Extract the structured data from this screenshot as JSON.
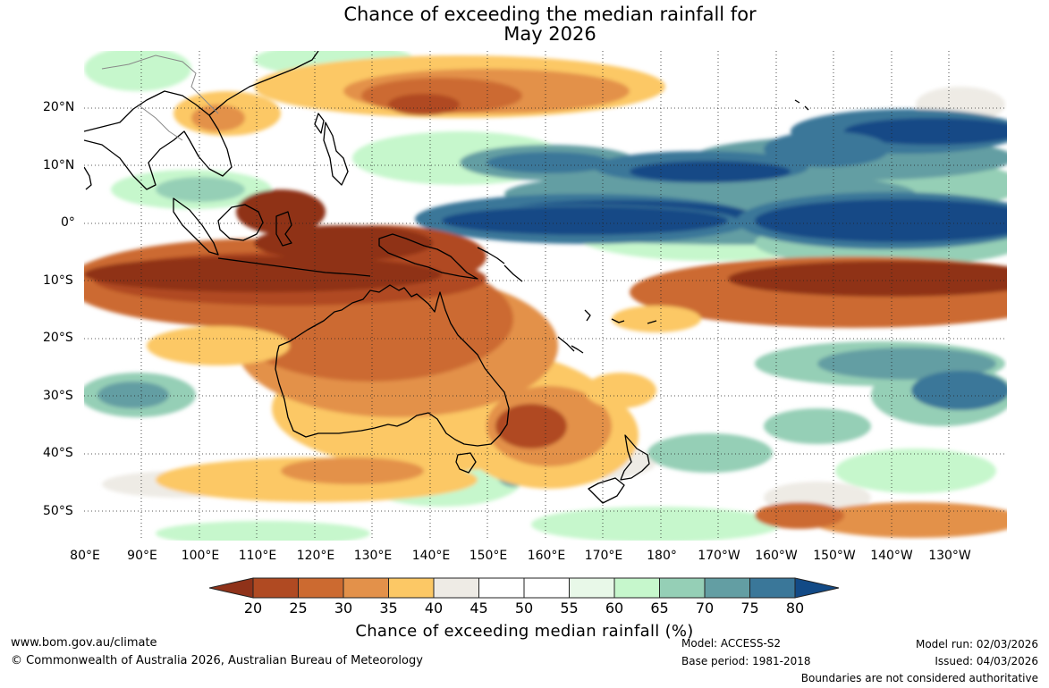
{
  "title": {
    "line1": "Chance of exceeding the median rainfall for",
    "line2": "May 2026"
  },
  "map": {
    "region": "Australia, Indonesia and western Pacific",
    "lat_labels": [
      "20°N",
      "10°N",
      "0°",
      "10°S",
      "20°S",
      "30°S",
      "40°S",
      "50°S"
    ],
    "lon_labels": [
      "80°E",
      "90°E",
      "100°E",
      "110°E",
      "120°E",
      "130°E",
      "140°E",
      "150°E",
      "160°E",
      "170°E",
      "180°",
      "170°W",
      "160°W",
      "150°W",
      "140°W",
      "130°W"
    ]
  },
  "colorbar": {
    "title": "Chance of exceeding median rainfall (%)",
    "ticks": [
      "20",
      "25",
      "30",
      "35",
      "40",
      "45",
      "50",
      "55",
      "60",
      "65",
      "70",
      "75",
      "80"
    ],
    "colors": {
      "below20": "#8f3219",
      "20-25": "#b04a22",
      "25-30": "#cc6a30",
      "30-35": "#e3914a",
      "35-40": "#fcc865",
      "40-45": "#eeebe5",
      "45-50": "#ffffff",
      "50-55": "#ffffff",
      "55-60": "#e8f8e8",
      "60-65": "#c6f7cc",
      "65-70": "#95cfb6",
      "70-75": "#639ea3",
      "75-80": "#3a7799",
      "above80": "#124a86"
    }
  },
  "footer": {
    "website": "www.bom.gov.au/climate",
    "copyright": "© Commonwealth of Australia 2026, Australian Bureau of Meteorology",
    "model": "Model: ACCESS-S2",
    "base_period": "Base period: 1981-2018",
    "model_run": "Model run: 02/03/2026",
    "issued": "Issued: 04/03/2026",
    "disclaimer": "Boundaries are not considered authoritative"
  }
}
